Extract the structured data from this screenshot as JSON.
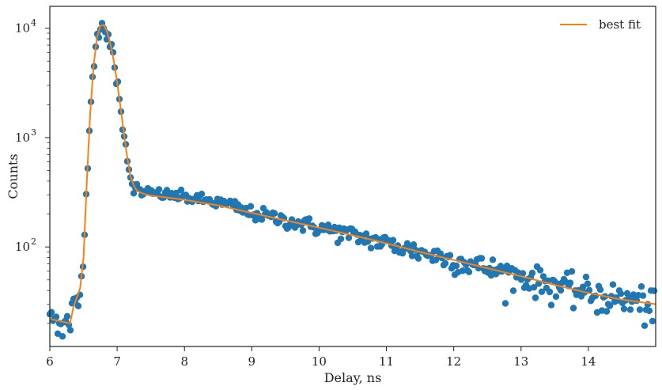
{
  "chart_data": {
    "type": "scatter",
    "xlabel": "Delay, ns",
    "ylabel": "Counts",
    "xlim": [
      6,
      15
    ],
    "ylim_log10": [
      1.09,
      4.2
    ],
    "yscale": "log",
    "grid": false,
    "legend_position": "top-right",
    "x_ticks": [
      6,
      7,
      8,
      9,
      10,
      11,
      12,
      13,
      14
    ],
    "y_ticks": [
      {
        "value": 100,
        "base": "10",
        "exp": "2"
      },
      {
        "value": 1000,
        "base": "10",
        "exp": "3"
      },
      {
        "value": 10000,
        "base": "10",
        "exp": "4"
      }
    ],
    "colors": {
      "data": "#1f77b4",
      "fit": "#ff7f0e",
      "axis": "#222222"
    },
    "series": [
      {
        "kind": "points",
        "color": "#1f77b4"
      },
      {
        "kind": "line",
        "name": "best fit",
        "color": "#ff7f0e",
        "x": [
          6.0,
          6.3,
          6.35,
          6.45,
          6.5,
          6.55,
          6.6,
          6.65,
          6.7,
          6.75,
          6.8,
          6.85,
          6.9,
          6.95,
          7.0,
          7.05,
          7.1,
          7.15,
          7.2,
          7.25,
          7.3,
          7.4,
          7.5,
          7.7,
          8.0,
          8.5,
          9.0,
          9.5,
          10.0,
          10.5,
          11.0,
          11.5,
          12.0,
          12.5,
          13.0,
          13.5,
          14.0,
          14.5,
          15.0
        ],
        "y": [
          22,
          20,
          28,
          42,
          80,
          400,
          1700,
          4500,
          8200,
          10500,
          10700,
          9300,
          7200,
          5000,
          3200,
          1900,
          1100,
          660,
          440,
          360,
          325,
          305,
          295,
          285,
          270,
          240,
          205,
          175,
          150,
          128,
          108,
          90,
          76,
          64,
          54,
          45,
          38,
          33,
          30
        ]
      }
    ]
  }
}
